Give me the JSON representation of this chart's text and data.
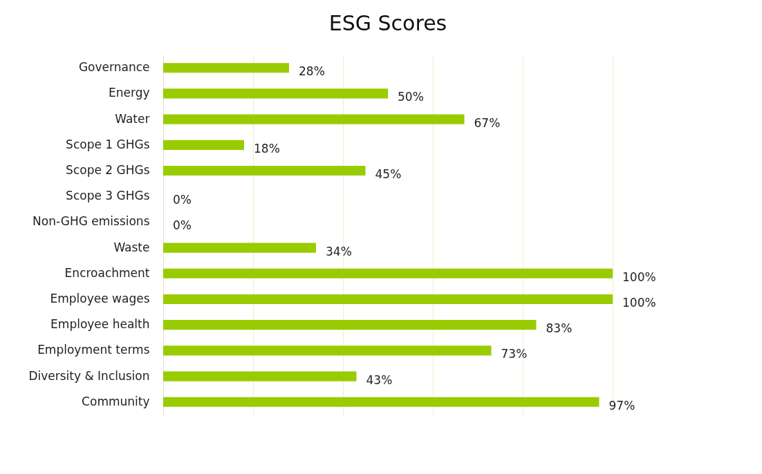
{
  "chart_data": {
    "type": "bar",
    "orientation": "horizontal",
    "title": "ESG Scores",
    "categories": [
      "Governance",
      "Energy",
      "Water",
      "Scope 1 GHGs",
      "Scope 2 GHGs",
      "Scope 3 GHGs",
      "Non-GHG emissions",
      "Waste",
      "Encroachment",
      "Employee wages",
      "Employee health",
      "Employment terms",
      "Diversity & Inclusion",
      "Community"
    ],
    "values": [
      28,
      50,
      67,
      18,
      45,
      0,
      0,
      34,
      100,
      100,
      83,
      73,
      43,
      97
    ],
    "value_labels": [
      "28%",
      "50%",
      "67%",
      "18%",
      "45%",
      "0%",
      "0%",
      "34%",
      "100%",
      "100%",
      "83%",
      "73%",
      "43%",
      "97%"
    ],
    "color": "#99cc00",
    "xlim": [
      0,
      100
    ],
    "xticks": [
      {
        "value": 0,
        "label": null
      },
      {
        "value": 20,
        "label": null
      },
      {
        "value": 40,
        "label": null
      },
      {
        "value": 60,
        "label": null
      },
      {
        "value": 80,
        "label": null
      },
      {
        "value": 100,
        "label": null
      }
    ],
    "grid": "x",
    "tick_labels": "y"
  }
}
